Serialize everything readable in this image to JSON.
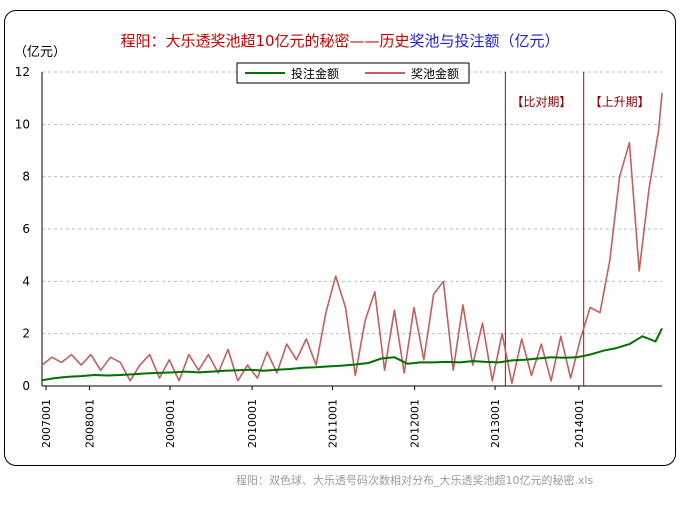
{
  "chart_data": {
    "type": "line",
    "title_parts": [
      {
        "text": "程阳：大乐透奖池超10亿元的秘密——历史",
        "color": "#c00000"
      },
      {
        "text": "奖池与投注额（亿元）",
        "color": "#1f1fc8"
      }
    ],
    "ylabel": "（亿元）",
    "ylim": [
      0,
      12
    ],
    "yticks": [
      "0",
      "2",
      "4",
      "6",
      "8",
      "10",
      "12"
    ],
    "xticks": [
      "2007001",
      "2008001",
      "2009001",
      "2010001",
      "2011001",
      "2012001",
      "2013001",
      "2014001"
    ],
    "grid": "horizontal dashed",
    "legend_position": "top-center",
    "annotations": [
      {
        "text": "【比对期】",
        "x_index": 142
      },
      {
        "text": "【上升期】",
        "x_index": 166
      }
    ],
    "series": [
      {
        "name": "投注金额",
        "color": "#007000",
        "x_index": [
          0,
          4,
          8,
          12,
          16,
          20,
          24,
          28,
          32,
          36,
          40,
          44,
          48,
          52,
          56,
          60,
          64,
          68,
          72,
          76,
          80,
          84,
          88,
          92,
          96,
          100,
          104,
          108,
          112,
          116,
          120,
          124,
          128,
          132,
          136,
          140,
          144,
          148,
          152,
          156,
          160,
          164,
          168,
          172,
          176,
          180,
          184,
          188,
          190
        ],
        "values": [
          0.22,
          0.3,
          0.35,
          0.38,
          0.42,
          0.4,
          0.42,
          0.45,
          0.48,
          0.5,
          0.52,
          0.55,
          0.52,
          0.55,
          0.58,
          0.6,
          0.62,
          0.58,
          0.62,
          0.65,
          0.7,
          0.72,
          0.75,
          0.78,
          0.82,
          0.88,
          1.05,
          1.1,
          0.85,
          0.9,
          0.9,
          0.92,
          0.9,
          0.95,
          0.92,
          0.9,
          0.98,
          1.0,
          1.05,
          1.1,
          1.08,
          1.1,
          1.2,
          1.35,
          1.45,
          1.6,
          1.9,
          1.7,
          2.2
        ]
      },
      {
        "name": "奖池金额",
        "color": "#c06060",
        "x_index": [
          0,
          3,
          6,
          9,
          12,
          15,
          18,
          21,
          24,
          27,
          30,
          33,
          36,
          39,
          42,
          45,
          48,
          51,
          54,
          57,
          60,
          63,
          66,
          69,
          72,
          75,
          78,
          81,
          84,
          87,
          90,
          93,
          96,
          99,
          102,
          105,
          108,
          111,
          114,
          117,
          120,
          123,
          126,
          129,
          132,
          135,
          138,
          141,
          144,
          147,
          150,
          153,
          156,
          159,
          162,
          165,
          168,
          171,
          174,
          177,
          180,
          183,
          186,
          189,
          190
        ],
        "values": [
          0.8,
          1.1,
          0.9,
          1.2,
          0.8,
          1.2,
          0.6,
          1.1,
          0.9,
          0.2,
          0.8,
          1.2,
          0.3,
          1.0,
          0.2,
          1.2,
          0.6,
          1.2,
          0.5,
          1.4,
          0.2,
          0.8,
          0.3,
          1.3,
          0.5,
          1.6,
          1.0,
          1.8,
          0.8,
          2.8,
          4.2,
          3.0,
          0.4,
          2.5,
          3.6,
          0.6,
          2.9,
          0.5,
          3.0,
          1.0,
          3.5,
          4.0,
          0.6,
          3.1,
          0.8,
          2.4,
          0.2,
          2.0,
          0.1,
          1.8,
          0.4,
          1.6,
          0.2,
          1.9,
          0.3,
          1.8,
          3.0,
          2.8,
          4.8,
          8.0,
          9.3,
          4.4,
          7.5,
          9.8,
          11.2
        ]
      }
    ]
  },
  "footer": "程阳：双色球、大乐透号码次数相对分布_大乐透奖池超10亿元的秘密.xls"
}
